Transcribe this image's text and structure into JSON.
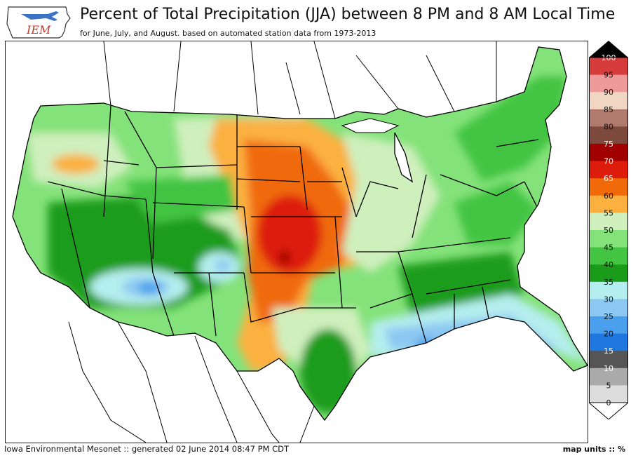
{
  "header": {
    "logo_text": "IEM",
    "title": "Percent of Total Precipitation (JJA) between 8 PM and 8 AM Local Time",
    "subtitle": "for June, July, and August. based on automated station data from 1973-2013"
  },
  "legend": {
    "levels": [
      "100",
      "95",
      "90",
      "85",
      "80",
      "75",
      "70",
      "65",
      "60",
      "55",
      "50",
      "45",
      "40",
      "35",
      "30",
      "25",
      "20",
      "15",
      "10",
      "5",
      "0"
    ],
    "colors": {
      "95-100": "#d73c3c",
      "90-95": "#ef9a9a",
      "85-90": "#f2d6c4",
      "80-85": "#b07b6e",
      "75-80": "#7f4a3e",
      "70-75": "#a00000",
      "65-70": "#dd1c0c",
      "60-65": "#f06a0a",
      "55-60": "#fbb040",
      "50-55": "#cfefbd",
      "45-50": "#84e27a",
      "40-45": "#43c443",
      "35-40": "#1a9c1a",
      "30-35": "#b5eeee",
      "25-30": "#8cc8f2",
      "20-25": "#4aa0ec",
      "15-20": "#1f78e0",
      "10-15": "#555555",
      "5-10": "#aaaaaa",
      "0-5": "#dddddd"
    }
  },
  "footer": {
    "source": "Iowa Environmental Mesonet :: generated 02 June 2014 08:47 PM CDT",
    "units": "map units :: %"
  }
}
